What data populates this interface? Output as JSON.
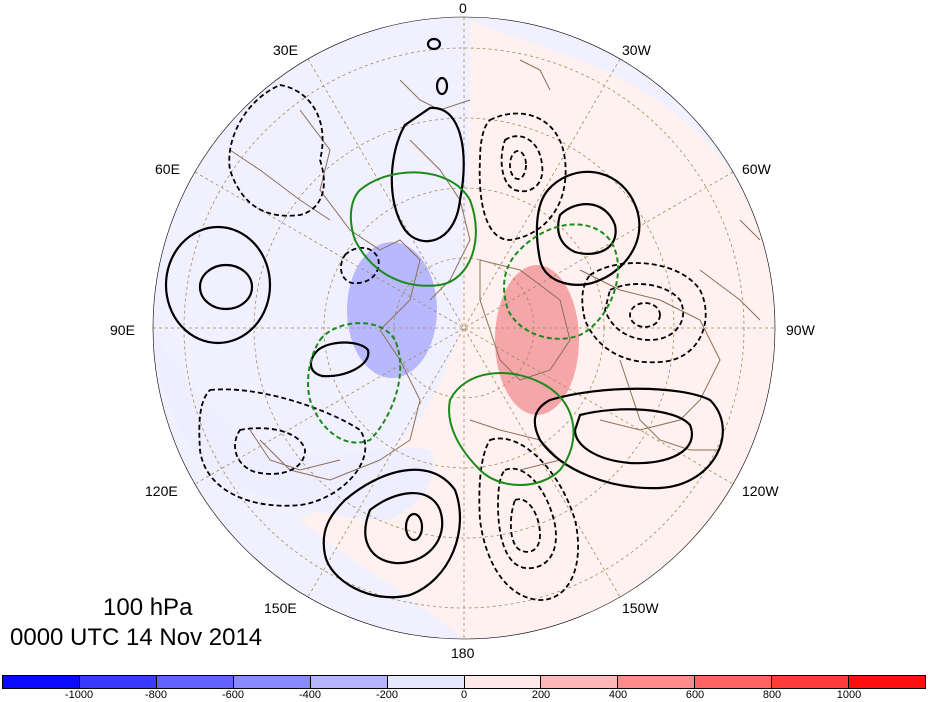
{
  "labels": {
    "lon_0": "0",
    "lon_30w": "30W",
    "lon_60w": "60W",
    "lon_90w": "90W",
    "lon_120w": "120W",
    "lon_150w": "150W",
    "lon_180": "180",
    "lon_150e": "150E",
    "lon_120e": "120E",
    "lon_90e": "90E",
    "lon_60e": "60E",
    "lon_30e": "30E"
  },
  "caption": {
    "level": "100 hPa",
    "time": "0000 UTC 14 Nov 2014"
  },
  "colorbar": {
    "colors": [
      "#0a0aff",
      "#3a3aff",
      "#6262ff",
      "#8a8aff",
      "#b4b4ff",
      "#e6e6ff",
      "#ffe8e8",
      "#ffb8b8",
      "#ff8c8c",
      "#ff6464",
      "#ff3c3c",
      "#ff1010"
    ],
    "tick_labels": [
      "-1000",
      "-800",
      "-600",
      "-400",
      "-200",
      "0",
      "200",
      "400",
      "600",
      "800",
      "1000"
    ]
  },
  "colors": {
    "positive_contour": "#000000",
    "negative_contour": "#000000",
    "green_contour": "#1a8a1a",
    "coastline": "#8b6f5a",
    "grid": "#a58a5f",
    "shade_blue": "#b4b4ff",
    "shade_red": "#f2a8a8"
  }
}
